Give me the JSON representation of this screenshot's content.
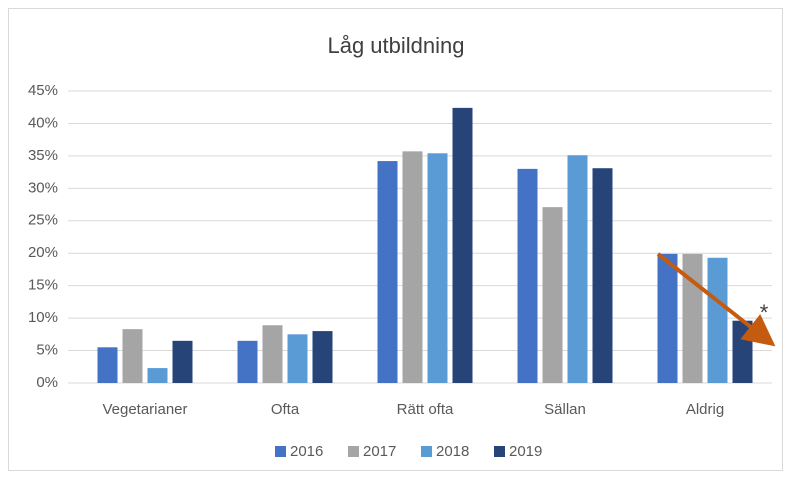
{
  "chart_data": {
    "type": "bar",
    "title": "Låg utbildning",
    "categories": [
      "Vegetarianer",
      "Ofta",
      "Rätt ofta",
      "Sällan",
      "Aldrig"
    ],
    "series": [
      {
        "name": "2016",
        "color": "#4472c4",
        "values": [
          5.5,
          6.5,
          34.2,
          33.0,
          19.9
        ]
      },
      {
        "name": "2017",
        "color": "#a5a5a5",
        "values": [
          8.3,
          8.9,
          35.7,
          27.1,
          19.9
        ]
      },
      {
        "name": "2018",
        "color": "#5b9bd5",
        "values": [
          2.3,
          7.5,
          35.4,
          35.1,
          19.3
        ]
      },
      {
        "name": "2019",
        "color": "#264478",
        "values": [
          6.5,
          8.0,
          42.4,
          33.1,
          9.6
        ]
      }
    ],
    "ylim": [
      0,
      45
    ],
    "yticks": [
      {
        "value": 0,
        "label": "0%"
      },
      {
        "value": 5,
        "label": "5%"
      },
      {
        "value": 10,
        "label": "10%"
      },
      {
        "value": 15,
        "label": "15%"
      },
      {
        "value": 20,
        "label": "20%"
      },
      {
        "value": 25,
        "label": "25%"
      },
      {
        "value": 30,
        "label": "30%"
      },
      {
        "value": 35,
        "label": "35%"
      },
      {
        "value": 40,
        "label": "40%"
      },
      {
        "value": 45,
        "label": "45%"
      }
    ],
    "grid": true,
    "legend": "bottom",
    "annotation": "*"
  }
}
